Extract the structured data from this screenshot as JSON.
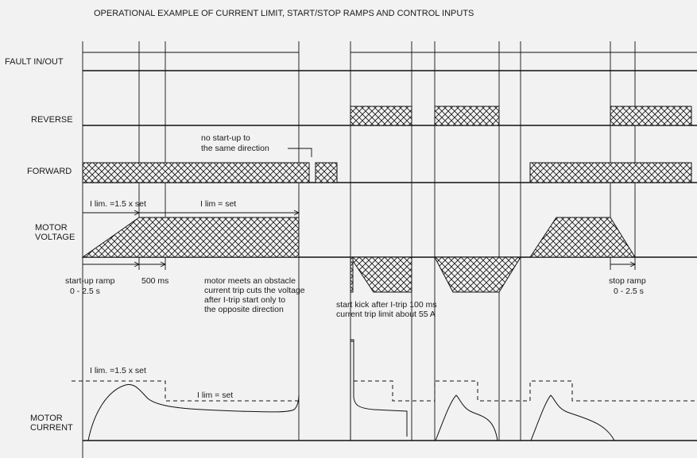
{
  "title": "OPERATIONAL EXAMPLE OF CURRENT LIMIT, START/STOP RAMPS AND CONTROL INPUTS",
  "signals": {
    "fault": "FAULT IN/OUT",
    "reverse": "REVERSE",
    "forward": "FORWARD",
    "motor_voltage": [
      "MOTOR",
      "VOLTAGE"
    ],
    "motor_current": [
      "MOTOR",
      "CURRENT"
    ]
  },
  "annotations": {
    "no_startup": [
      "no start-up to",
      "the same direction"
    ],
    "ilim_15_voltage": "I lim. =1.5 x set",
    "ilim_set_voltage": "I lim = set",
    "startup_ramp": [
      "start-up ramp",
      "0 - 2.5 s"
    ],
    "ms500": "500 ms",
    "obstacle": [
      "motor meets an obstacle",
      "current trip cuts the voltage",
      "after I-trip start only to",
      "the opposite direction"
    ],
    "start_kick": [
      "start kick after I-trip 100 ms",
      "current trip limit about 55 A"
    ],
    "stop_ramp": [
      "stop ramp",
      "0 - 2.5 s"
    ],
    "ilim_15_current": "I lim. =1.5 x set",
    "ilim_set_current": "I lim = set"
  }
}
